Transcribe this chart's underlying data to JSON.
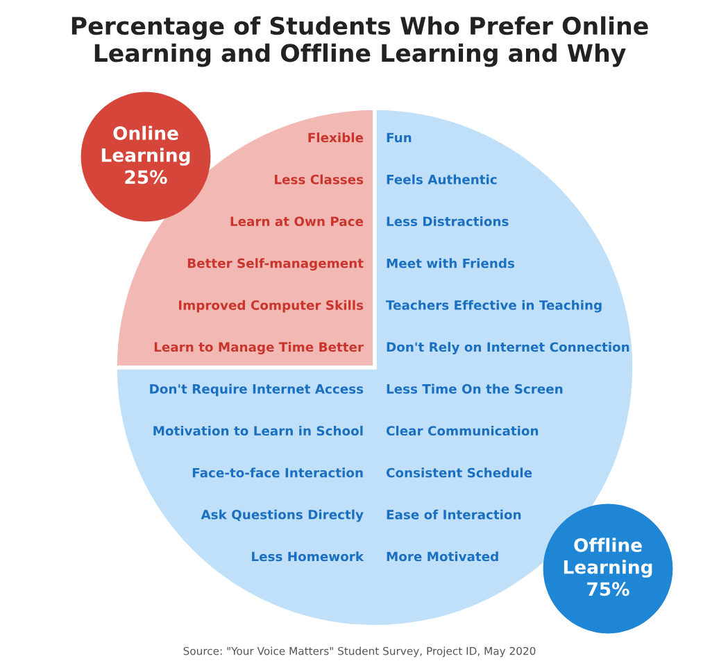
{
  "chart_data": {
    "type": "pie",
    "title": "Percentage of Students Who Prefer Online\nLearning and Offline Learning and Why",
    "categories": [
      "Online\nLearning",
      "Offline\nLearning"
    ],
    "values": [
      25,
      75
    ],
    "value_labels": [
      "25%",
      "75%"
    ],
    "colors": [
      "#f2b8b3",
      "#bfe0f8"
    ],
    "annotations": [
      "Flexible",
      "Less Classes",
      "Learn at Own Pace",
      "Better Self-management",
      "Improved Computer Skills",
      "Learn to Manage Time Better",
      "Fun",
      "Feels Authentic",
      "Less Distractions",
      "Meet with Friends",
      "Teachers Effective in Teaching",
      "Don't Rely on Internet Connection",
      "Less Time On the Screen",
      "Clear Communication",
      "Consistent Schedule",
      "Ease of Interaction",
      "More Motivated",
      "Don't Require Internet Access",
      "Motivation to Learn in School",
      "Face-to-face Interaction",
      "Ask Questions Directly",
      "Less Homework",
      "Source: \"Your Voice Matters\" Student Survey, Project ID, May 2020"
    ]
  }
}
